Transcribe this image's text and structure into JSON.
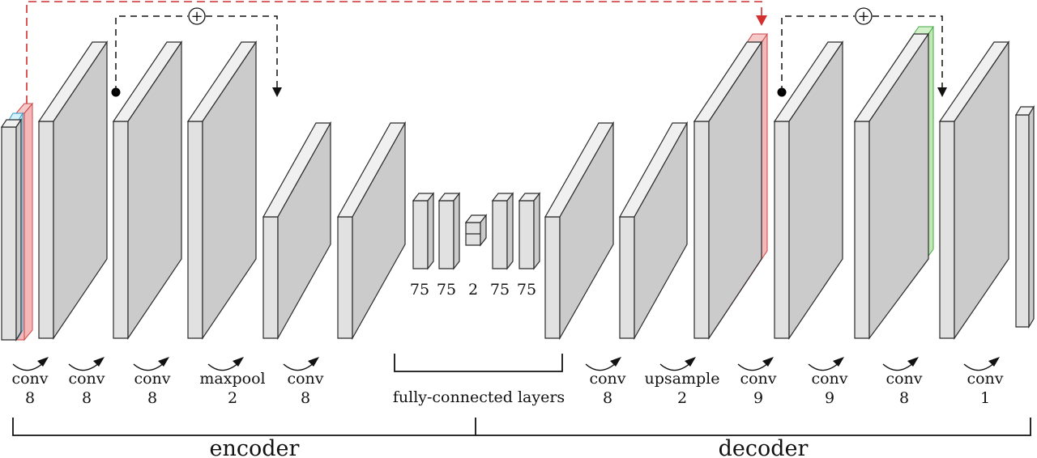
{
  "encoder": {
    "label": "encoder",
    "ops": [
      {
        "op": "conv",
        "k": "8"
      },
      {
        "op": "conv",
        "k": "8"
      },
      {
        "op": "conv",
        "k": "8"
      },
      {
        "op": "maxpool",
        "k": "2"
      },
      {
        "op": "conv",
        "k": "8"
      }
    ]
  },
  "fc": {
    "label": "fully-connected layers",
    "sizes": [
      "75",
      "75",
      "2",
      "75",
      "75"
    ]
  },
  "decoder": {
    "label": "decoder",
    "ops": [
      {
        "op": "conv",
        "k": "8"
      },
      {
        "op": "upsample",
        "k": "2"
      },
      {
        "op": "conv",
        "k": "9"
      },
      {
        "op": "conv",
        "k": "9"
      },
      {
        "op": "conv",
        "k": "8"
      },
      {
        "op": "conv",
        "k": "1"
      }
    ]
  },
  "skip_symbol": "+",
  "colors": {
    "red_skip": "#d32f2f",
    "channel_red": "#f4b8b8",
    "channel_cyan": "#bfeaf5",
    "channel_green": "#bfe8b5",
    "block": "#e1e1e1"
  }
}
